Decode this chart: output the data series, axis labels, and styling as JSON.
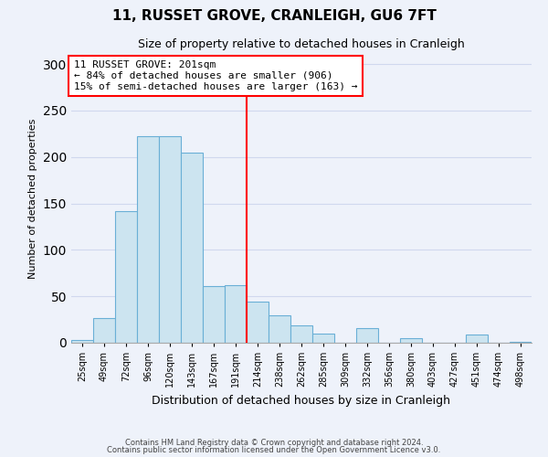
{
  "title": "11, RUSSET GROVE, CRANLEIGH, GU6 7FT",
  "subtitle": "Size of property relative to detached houses in Cranleigh",
  "xlabel": "Distribution of detached houses by size in Cranleigh",
  "ylabel": "Number of detached properties",
  "bar_labels": [
    "25sqm",
    "49sqm",
    "72sqm",
    "96sqm",
    "120sqm",
    "143sqm",
    "167sqm",
    "191sqm",
    "214sqm",
    "238sqm",
    "262sqm",
    "285sqm",
    "309sqm",
    "332sqm",
    "356sqm",
    "380sqm",
    "403sqm",
    "427sqm",
    "451sqm",
    "474sqm",
    "498sqm"
  ],
  "bar_values": [
    3,
    27,
    142,
    222,
    222,
    205,
    61,
    62,
    44,
    30,
    19,
    10,
    0,
    16,
    0,
    5,
    0,
    0,
    9,
    0,
    1
  ],
  "bar_color": "#cce4f0",
  "bar_edge_color": "#6aafd6",
  "vline_x": 7.5,
  "vline_color": "red",
  "annotation_line1": "11 RUSSET GROVE: 201sqm",
  "annotation_line2": "← 84% of detached houses are smaller (906)",
  "annotation_line3": "15% of semi-detached houses are larger (163) →",
  "annotation_box_color": "white",
  "annotation_box_edge_color": "red",
  "ylim": [
    0,
    310
  ],
  "yticks": [
    0,
    50,
    100,
    150,
    200,
    250,
    300
  ],
  "footer_line1": "Contains HM Land Registry data © Crown copyright and database right 2024.",
  "footer_line2": "Contains public sector information licensed under the Open Government Licence v3.0.",
  "bg_color": "#eef2fa",
  "grid_color": "#d0d8ee"
}
